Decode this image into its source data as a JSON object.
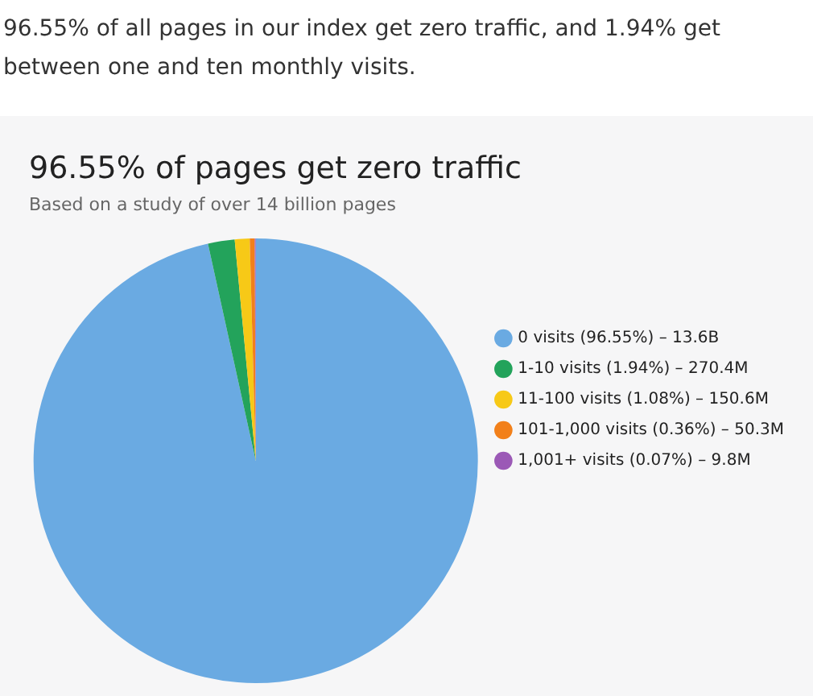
{
  "chart_data": {
    "type": "pie",
    "title": "96.55% of pages get zero traffic",
    "subtitle": "Based on a study of over 14 billion pages",
    "annotations": [
      "96.55% of all pages in our index get zero traffic, and 1.94% get between one and ten monthly visits."
    ],
    "categories": [
      "0 visits (96.55%) – 13.6B",
      "1-10 visits (1.94%) – 270.4M",
      "11-100 visits (1.08%) – 150.6M",
      "101-1,000 visits (0.36%) – 50.3M",
      "1,001+ visits (0.07%) – 9.8M"
    ],
    "values": [
      96.55,
      1.94,
      1.08,
      0.36,
      0.07
    ],
    "colors": [
      "#6aaae2",
      "#23a35b",
      "#f7c917",
      "#f2801a",
      "#9b59b6"
    ],
    "legend": "right"
  }
}
